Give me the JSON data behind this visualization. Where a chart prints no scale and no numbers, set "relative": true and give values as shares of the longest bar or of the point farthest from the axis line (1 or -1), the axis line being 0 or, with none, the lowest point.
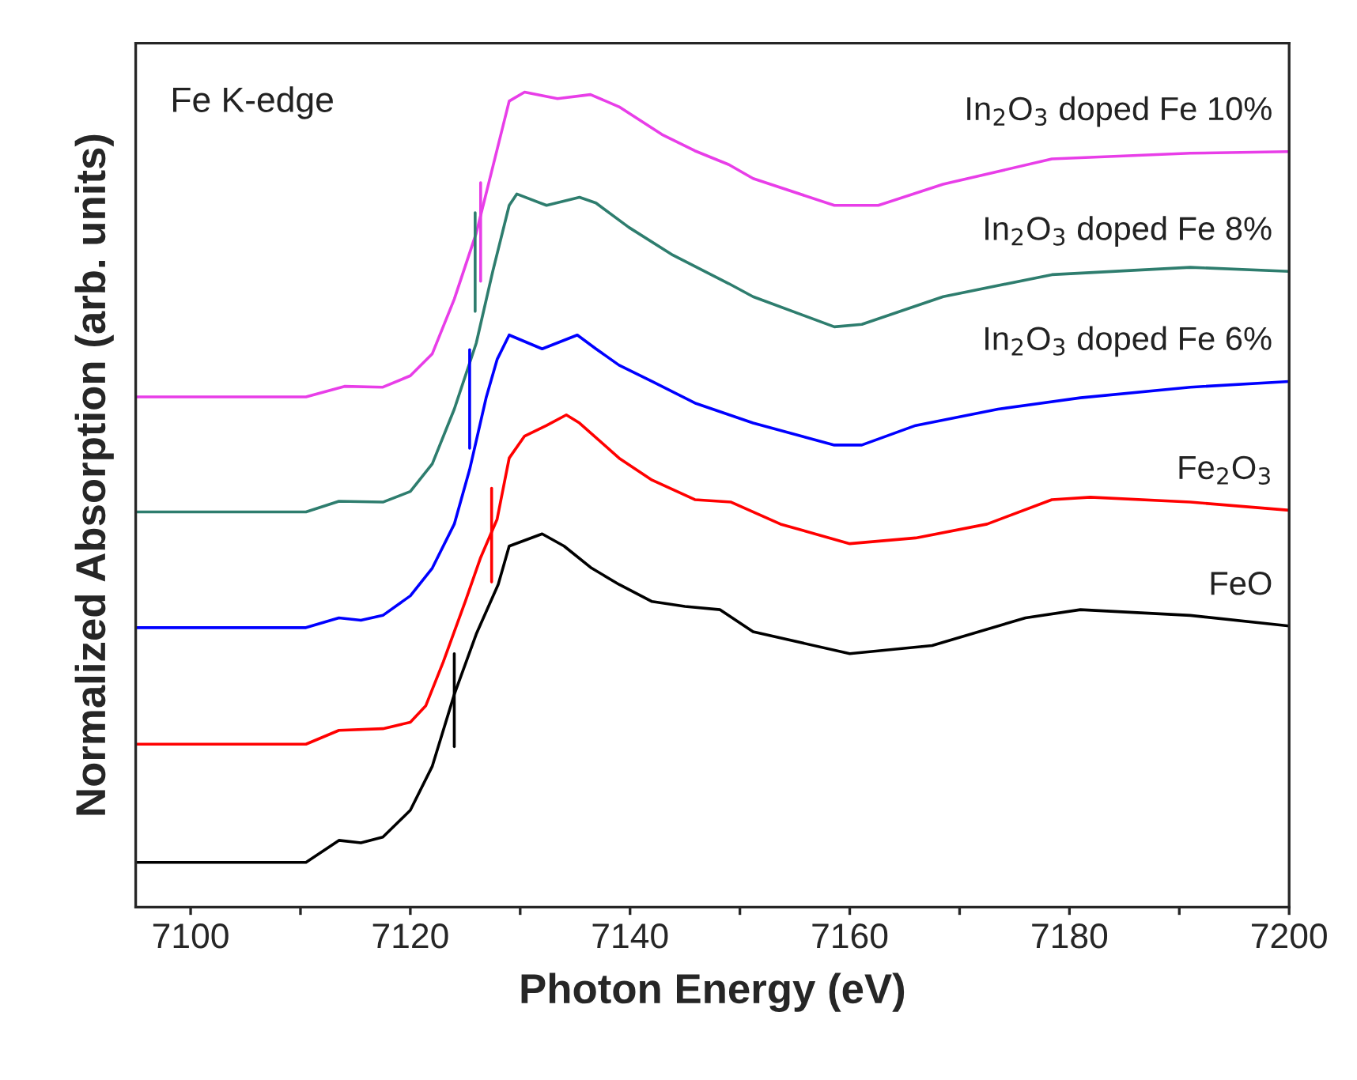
{
  "chart_data": {
    "type": "line",
    "relative": true,
    "xlabel": "Photon Energy (eV)",
    "ylabel": "Normalized Absorption (arb. units)",
    "xlim": [
      7095,
      7200
    ],
    "xticks": [
      {
        "value": 7100,
        "label": "7100"
      },
      {
        "value": 7110,
        "label": null
      },
      {
        "value": 7120,
        "label": "7120"
      },
      {
        "value": 7130,
        "label": null
      },
      {
        "value": 7140,
        "label": "7140"
      },
      {
        "value": 7150,
        "label": null
      },
      {
        "value": 7160,
        "label": "7160"
      },
      {
        "value": 7170,
        "label": null
      },
      {
        "value": 7180,
        "label": "7180"
      },
      {
        "value": 7190,
        "label": null
      },
      {
        "value": 7200,
        "label": "7200"
      }
    ],
    "tick_labels": "x",
    "grid": false,
    "legend": false,
    "marker": "none",
    "line_style": "solid",
    "annotations": [
      "Fe K-edge"
    ],
    "series": [
      {
        "name": "FeO",
        "color": "#000000",
        "x": [
          7095,
          7110.5,
          7113.5,
          7115.5,
          7117.5,
          7120,
          7122,
          7124,
          7126,
          7128,
          7129,
          7132,
          7134,
          7136.5,
          7139,
          7142,
          7145,
          7148.2,
          7151.2,
          7160,
          7167.5,
          7176,
          7181,
          7191,
          7200
        ],
        "values": [
          0.055,
          0.055,
          0.082,
          0.079,
          0.086,
          0.119,
          0.173,
          0.261,
          0.335,
          0.396,
          0.443,
          0.458,
          0.443,
          0.416,
          0.396,
          0.375,
          0.369,
          0.365,
          0.338,
          0.311,
          0.321,
          0.355,
          0.365,
          0.358,
          0.345
        ]
      },
      {
        "name": "Fe$_{2}$O$_{3}$",
        "color": "#ff0000",
        "x": [
          7095,
          7110.5,
          7113.5,
          7117.5,
          7120,
          7121.4,
          7123,
          7125,
          7126.4,
          7127.9,
          7129,
          7130.4,
          7132.4,
          7134.2,
          7135.4,
          7139,
          7142,
          7145.9,
          7149.2,
          7153.7,
          7160,
          7166,
          7172.5,
          7178.4,
          7181.9,
          7191,
          7200
        ],
        "values": [
          0.2,
          0.2,
          0.217,
          0.219,
          0.227,
          0.247,
          0.301,
          0.375,
          0.429,
          0.476,
          0.551,
          0.578,
          0.591,
          0.604,
          0.594,
          0.551,
          0.524,
          0.5,
          0.497,
          0.47,
          0.446,
          0.453,
          0.47,
          0.5,
          0.503,
          0.497,
          0.487
        ]
      },
      {
        "name": "In$_{2}$O$_{3}$ doped Fe 6%",
        "color": "#0000ff",
        "x": [
          7095,
          7110.5,
          7113.5,
          7115.5,
          7117.5,
          7120,
          7122,
          7124,
          7125.4,
          7126.9,
          7127.9,
          7129,
          7132,
          7135.2,
          7136.9,
          7139,
          7142,
          7146,
          7151.2,
          7158.6,
          7161.1,
          7166,
          7173.5,
          7181,
          7191,
          7200
        ],
        "values": [
          0.343,
          0.343,
          0.355,
          0.352,
          0.358,
          0.382,
          0.416,
          0.47,
          0.537,
          0.625,
          0.672,
          0.702,
          0.685,
          0.702,
          0.685,
          0.665,
          0.645,
          0.618,
          0.594,
          0.567,
          0.567,
          0.591,
          0.611,
          0.625,
          0.638,
          0.645
        ]
      },
      {
        "name": "In$_{2}$O$_{3}$ doped Fe 8%",
        "color": "#2e7d6e",
        "x": [
          7095,
          7110.5,
          7113.5,
          7117.5,
          7120,
          7122,
          7124,
          7126,
          7127.5,
          7129,
          7129.7,
          7132.4,
          7135.4,
          7136.9,
          7139.9,
          7143.9,
          7149,
          7151.2,
          7158.6,
          7161.1,
          7168.5,
          7178.4,
          7191,
          7200
        ],
        "values": [
          0.485,
          0.485,
          0.498,
          0.497,
          0.51,
          0.544,
          0.611,
          0.692,
          0.78,
          0.861,
          0.875,
          0.861,
          0.871,
          0.864,
          0.834,
          0.8,
          0.765,
          0.749,
          0.712,
          0.715,
          0.749,
          0.776,
          0.785,
          0.78
        ]
      },
      {
        "name": "In$_{2}$O$_{3}$ doped Fe 10%",
        "color": "#e83ee8",
        "x": [
          7095,
          7110.5,
          7114,
          7117.5,
          7120,
          7122,
          7124,
          7126,
          7127.5,
          7129,
          7130.4,
          7133.4,
          7136.4,
          7139,
          7142.9,
          7145.9,
          7149,
          7151.2,
          7158.6,
          7162.6,
          7168.5,
          7178.4,
          7191,
          7200
        ],
        "values": [
          0.626,
          0.626,
          0.639,
          0.638,
          0.652,
          0.679,
          0.746,
          0.827,
          0.908,
          0.989,
          1,
          0.992,
          0.997,
          0.982,
          0.948,
          0.928,
          0.911,
          0.894,
          0.861,
          0.861,
          0.887,
          0.918,
          0.925,
          0.927
        ]
      },
      {
        "color": "#000000",
        "x": [
          7124.0,
          7124.0
        ],
        "values": [
          0.311,
          0.197
        ]
      },
      {
        "color": "#ff0000",
        "x": [
          7127.4,
          7127.4
        ],
        "values": [
          0.514,
          0.399
        ]
      },
      {
        "color": "#0000ff",
        "x": [
          7125.4,
          7125.4
        ],
        "values": [
          0.684,
          0.563
        ]
      },
      {
        "color": "#2e7d6e",
        "x": [
          7125.9,
          7125.9
        ],
        "values": [
          0.852,
          0.731
        ]
      },
      {
        "color": "#e83ee8",
        "x": [
          7126.4,
          7126.4
        ],
        "values": [
          0.889,
          0.768
        ]
      }
    ]
  }
}
